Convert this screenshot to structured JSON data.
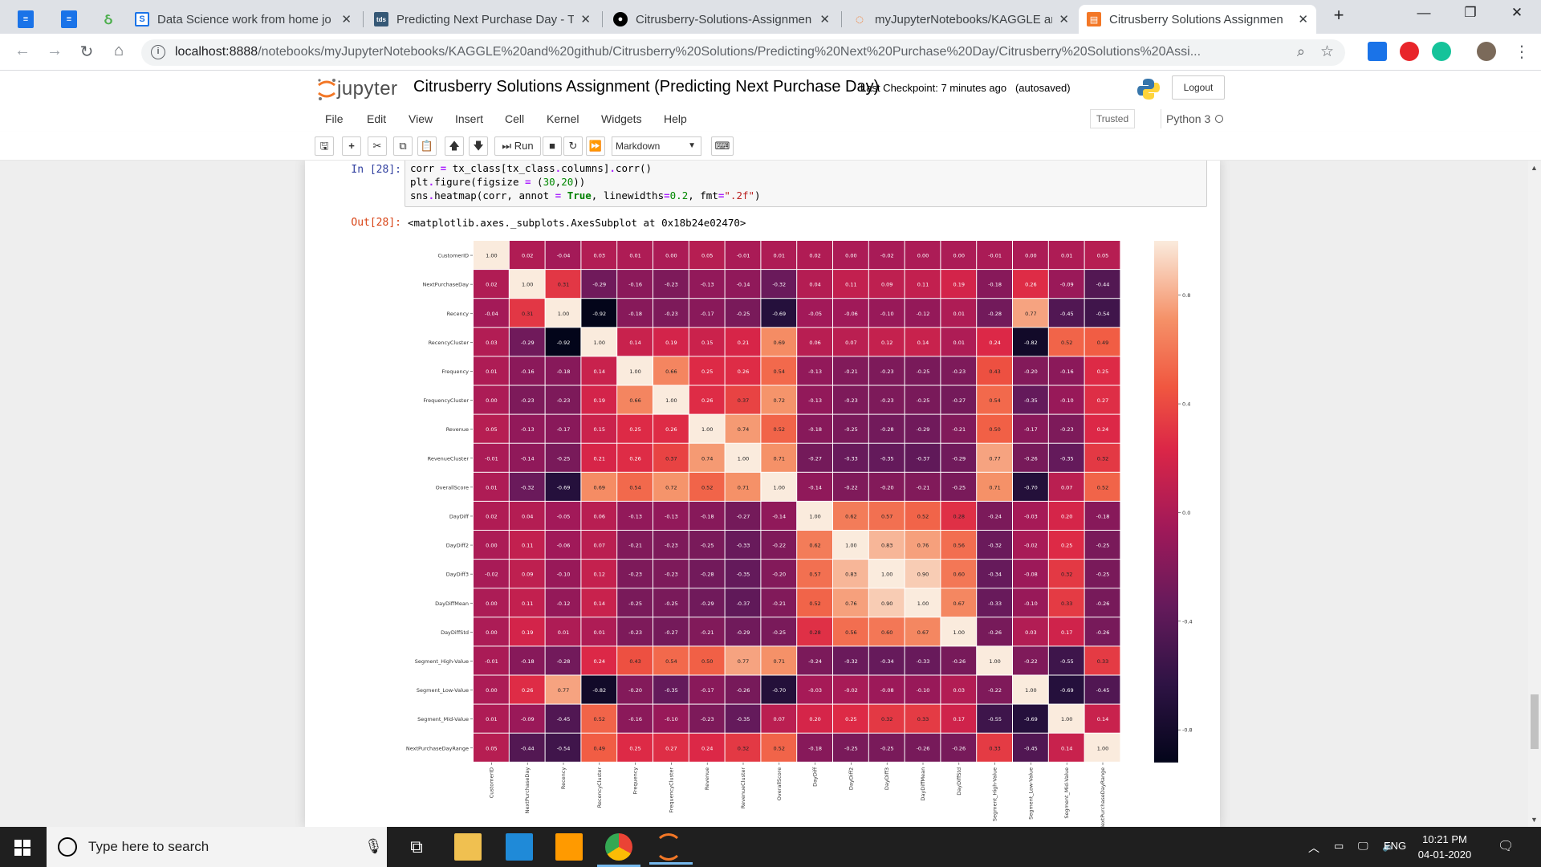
{
  "browser": {
    "tabs": [
      {
        "label": "Data Science work from home jo",
        "icon": "s-document-icon",
        "color": "#1a73e8"
      },
      {
        "label": "Predicting Next Purchase Day - T",
        "icon": "tds-icon",
        "color": "#355876"
      },
      {
        "label": "Citrusberry-Solutions-Assignmen",
        "icon": "github-icon",
        "color": "#000000"
      },
      {
        "label": "myJupyterNotebooks/KAGGLE ar",
        "icon": "jupyter-icon",
        "color": "#f37726"
      },
      {
        "label": "Citrusberry Solutions Assignmen",
        "icon": "notebook-icon",
        "color": "#f37726"
      }
    ],
    "url_host": "localhost:8888",
    "url_path": "/notebooks/myJupyterNotebooks/KAGGLE%20and%20github/Citrusberry%20Solutions/Predicting%20Next%20Purchase%20Day/Citrusberry%20Solutions%20Assi..."
  },
  "jupyter": {
    "logo_text": "jupyter",
    "notebook_title": "Citrusberry Solutions Assignment (Predicting Next Purchase Day)",
    "checkpoint": "Last Checkpoint: 7 minutes ago",
    "autosave": "(autosaved)",
    "logout": "Logout",
    "menu": [
      "File",
      "Edit",
      "View",
      "Insert",
      "Cell",
      "Kernel",
      "Widgets",
      "Help"
    ],
    "trusted": "Trusted",
    "kernel": "Python 3",
    "run_label": "Run",
    "cell_type": "Markdown"
  },
  "cell": {
    "in_prompt": "In [28]:",
    "out_prompt": "Out[28]:",
    "code": [
      "corr = tx_class[tx_class.columns].corr()",
      "plt.figure(figsize = (30,20))",
      "sns.heatmap(corr, annot = True, linewidths=0.2, fmt=\".2f\")"
    ],
    "output": "<matplotlib.axes._subplots.AxesSubplot at 0x18b24e02470>"
  },
  "chart_data": {
    "type": "heatmap",
    "title": "",
    "labels": [
      "CustomerID",
      "NextPurchaseDay",
      "Recency",
      "RecencyCluster",
      "Frequency",
      "FrequencyCluster",
      "Revenue",
      "RevenueCluster",
      "OverallScore",
      "DayDiff",
      "DayDiff2",
      "DayDiff3",
      "DayDiffMean",
      "DayDiffStd",
      "Segment_High-Value",
      "Segment_Low-Value",
      "Segment_Mid-Value",
      "NextPurchaseDayRange"
    ],
    "matrix": [
      [
        1.0,
        0.02,
        -0.04,
        0.03,
        0.01,
        0.0,
        0.05,
        -0.01,
        0.01,
        0.02,
        -0.0,
        -0.02,
        0.0,
        0.0,
        -0.01,
        -0.0,
        0.01,
        0.05
      ],
      [
        0.02,
        1.0,
        0.31,
        -0.29,
        -0.16,
        -0.23,
        -0.13,
        -0.14,
        -0.32,
        0.04,
        0.11,
        0.09,
        0.11,
        0.19,
        -0.18,
        0.26,
        -0.09,
        -0.44
      ],
      [
        -0.04,
        0.31,
        1.0,
        -0.92,
        -0.18,
        -0.23,
        -0.17,
        -0.25,
        -0.69,
        -0.05,
        -0.06,
        -0.1,
        -0.12,
        0.01,
        -0.28,
        0.77,
        -0.45,
        -0.54
      ],
      [
        0.03,
        -0.29,
        -0.92,
        1.0,
        0.14,
        0.19,
        0.15,
        0.21,
        0.69,
        0.06,
        0.07,
        0.12,
        0.14,
        0.01,
        0.24,
        -0.82,
        0.52,
        0.49
      ],
      [
        0.01,
        -0.16,
        -0.18,
        0.14,
        1.0,
        0.66,
        0.25,
        0.26,
        0.54,
        -0.13,
        -0.21,
        -0.23,
        -0.25,
        -0.23,
        0.43,
        -0.2,
        -0.16,
        0.25
      ],
      [
        0.0,
        -0.23,
        -0.23,
        0.19,
        0.66,
        1.0,
        0.26,
        0.37,
        0.72,
        -0.13,
        -0.23,
        -0.23,
        -0.25,
        -0.27,
        0.54,
        -0.35,
        -0.1,
        0.27
      ],
      [
        0.05,
        -0.13,
        -0.17,
        0.15,
        0.25,
        0.26,
        1.0,
        0.74,
        0.52,
        -0.18,
        -0.25,
        -0.28,
        -0.29,
        -0.21,
        0.5,
        -0.17,
        -0.23,
        0.24
      ],
      [
        -0.01,
        -0.14,
        -0.25,
        0.21,
        0.26,
        0.37,
        0.74,
        1.0,
        0.71,
        -0.27,
        -0.33,
        -0.35,
        -0.37,
        -0.29,
        0.77,
        -0.26,
        -0.35,
        0.32
      ],
      [
        0.01,
        -0.32,
        -0.69,
        0.69,
        0.54,
        0.72,
        0.52,
        0.71,
        1.0,
        -0.14,
        -0.22,
        -0.2,
        -0.21,
        -0.25,
        0.71,
        -0.7,
        0.07,
        0.52
      ],
      [
        0.02,
        0.04,
        -0.05,
        0.06,
        -0.13,
        -0.13,
        -0.18,
        -0.27,
        -0.14,
        1.0,
        0.62,
        0.57,
        0.52,
        0.28,
        -0.24,
        -0.03,
        0.2,
        -0.18
      ],
      [
        -0.0,
        0.11,
        -0.06,
        0.07,
        -0.21,
        -0.23,
        -0.25,
        -0.33,
        -0.22,
        0.62,
        1.0,
        0.83,
        0.76,
        0.56,
        -0.32,
        -0.02,
        0.25,
        -0.25
      ],
      [
        -0.02,
        0.09,
        -0.1,
        0.12,
        -0.23,
        -0.23,
        -0.28,
        -0.35,
        -0.2,
        0.57,
        0.83,
        1.0,
        0.9,
        0.6,
        -0.34,
        -0.08,
        0.32,
        -0.25
      ],
      [
        0.0,
        0.11,
        -0.12,
        0.14,
        -0.25,
        -0.25,
        -0.29,
        -0.37,
        -0.21,
        0.52,
        0.76,
        0.9,
        1.0,
        0.67,
        -0.33,
        -0.1,
        0.33,
        -0.26
      ],
      [
        0.0,
        0.19,
        0.01,
        0.01,
        -0.23,
        -0.27,
        -0.21,
        -0.29,
        -0.25,
        0.28,
        0.56,
        0.6,
        0.67,
        1.0,
        -0.26,
        0.03,
        0.17,
        -0.26
      ],
      [
        -0.01,
        -0.18,
        -0.28,
        0.24,
        0.43,
        0.54,
        0.5,
        0.77,
        0.71,
        -0.24,
        -0.32,
        -0.34,
        -0.33,
        -0.26,
        1.0,
        -0.22,
        -0.55,
        0.33
      ],
      [
        -0.0,
        0.26,
        0.77,
        -0.82,
        -0.2,
        -0.35,
        -0.17,
        -0.26,
        -0.7,
        -0.03,
        -0.02,
        -0.08,
        -0.1,
        0.03,
        -0.22,
        1.0,
        -0.69,
        -0.45
      ],
      [
        0.01,
        -0.09,
        -0.45,
        0.52,
        -0.16,
        -0.1,
        -0.23,
        -0.35,
        0.07,
        0.2,
        0.25,
        0.32,
        0.33,
        0.17,
        -0.55,
        -0.69,
        1.0,
        0.14
      ],
      [
        0.05,
        -0.44,
        -0.54,
        0.49,
        0.25,
        0.27,
        0.24,
        0.32,
        0.52,
        -0.18,
        -0.25,
        -0.25,
        -0.26,
        -0.26,
        0.33,
        -0.45,
        0.14,
        1.0
      ]
    ],
    "colorbar_ticks": [
      "0.8",
      "0.4",
      "0.0",
      "-0.4",
      "-0.8"
    ],
    "colorbar_tick_values": [
      0.8,
      0.4,
      0.0,
      -0.4,
      -0.8
    ],
    "vmin": -0.92,
    "vmax": 1.0,
    "colormap": "rocket"
  },
  "taskbar": {
    "search_placeholder": "Type here to search",
    "lang": "ENG",
    "time": "10:21 PM",
    "date": "04-01-2020"
  }
}
